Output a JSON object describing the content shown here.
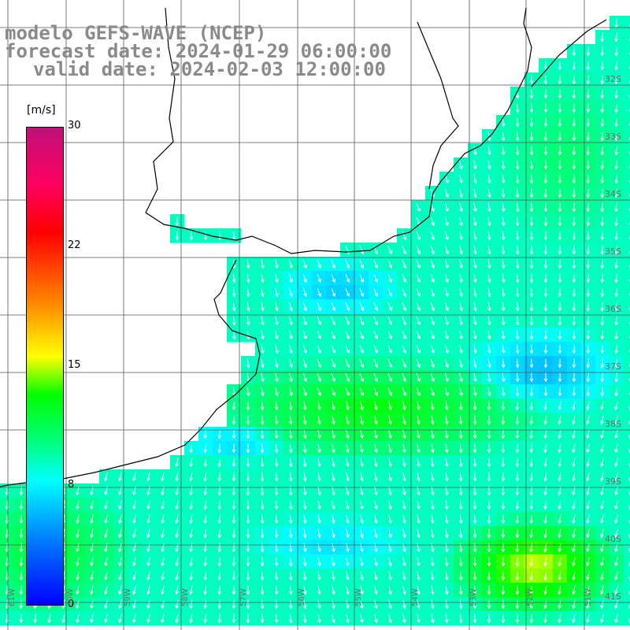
{
  "header": {
    "line1": "modelo GEFS-WAVE (NCEP)",
    "line2": "forecast date: 2024-01-29 06:00:00",
    "line3": "valid date: 2024-02-03 12:00:00"
  },
  "colorbar": {
    "unit": "[m/s]",
    "ticks": [
      "30",
      "22",
      "15",
      "8",
      "0"
    ]
  },
  "lat_labels": [
    "32S",
    "33S",
    "34S",
    "35S",
    "36S",
    "37S",
    "38S",
    "39S",
    "40S",
    "41S"
  ],
  "lon_labels": [
    "61W",
    "60W",
    "59W",
    "58W",
    "57W",
    "56W",
    "55W",
    "54W",
    "53W",
    "52W",
    "51W"
  ],
  "colors": {
    "land": "#ffffff",
    "grid": "#555555",
    "coast": "#000000",
    "arrow": "#ffffff"
  }
}
